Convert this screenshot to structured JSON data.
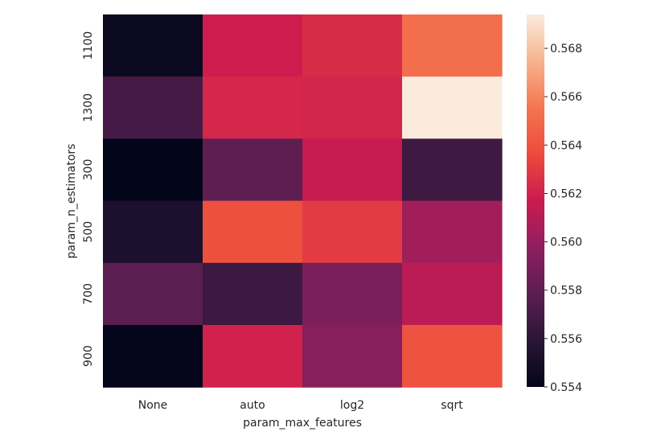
{
  "chart_data": {
    "type": "heatmap",
    "title": "",
    "xlabel": "param_max_features",
    "ylabel": "param_n_estimators",
    "x_categories": [
      "None",
      "auto",
      "log2",
      "sqrt"
    ],
    "y_categories": [
      "1100",
      "1300",
      "300",
      "500",
      "700",
      "900"
    ],
    "values": [
      [
        0.5544,
        0.5618,
        0.5624,
        0.5652
      ],
      [
        0.557,
        0.5622,
        0.5621,
        0.5694
      ],
      [
        0.554,
        0.558,
        0.5615,
        0.5567
      ],
      [
        0.5553,
        0.5639,
        0.563,
        0.5604
      ],
      [
        0.5578,
        0.5566,
        0.559,
        0.5612
      ],
      [
        0.5541,
        0.562,
        0.5595,
        0.564
      ]
    ],
    "colorbar": {
      "range": [
        0.554,
        0.5694
      ],
      "tick_values": [
        0.554,
        0.556,
        0.558,
        0.56,
        0.562,
        0.564,
        0.566,
        0.568
      ],
      "tick_labels": [
        "0.554",
        "0.556",
        "0.558",
        "0.560",
        "0.562",
        "0.564",
        "0.566",
        "0.568"
      ],
      "colormap": "rocket"
    }
  }
}
